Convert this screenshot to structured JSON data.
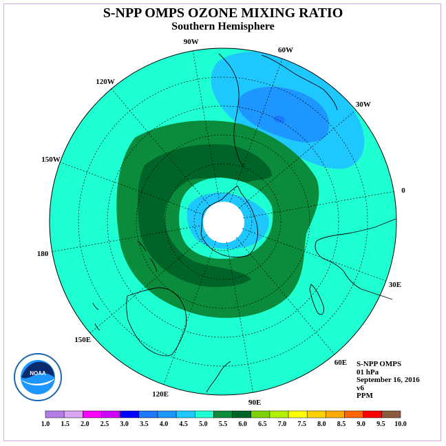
{
  "title": "S-NPP OMPS OZONE MIXING RATIO",
  "subtitle": "Southern Hemisphere",
  "info": {
    "instrument": "S-NPP OMPS",
    "level": "01 hPa",
    "date": "September 16, 2016",
    "version": "v6",
    "units": "PPM"
  },
  "logo_text": "NOAA",
  "longitude_labels": [
    "90W",
    "60W",
    "30W",
    "0",
    "30E",
    "60E",
    "90E",
    "120E",
    "150E",
    "180",
    "150W",
    "120W"
  ],
  "colorbar": {
    "ticks": [
      "1.0",
      "1.5",
      "2.0",
      "2.5",
      "3.0",
      "3.5",
      "4.0",
      "4.5",
      "5.0",
      "5.5",
      "6.0",
      "6.5",
      "7.0",
      "7.5",
      "8.0",
      "8.5",
      "9.0",
      "9.5",
      "10.0"
    ],
    "colors": [
      "#b27de6",
      "#d9a6f2",
      "#ff00ff",
      "#cc00ff",
      "#0000ff",
      "#1e78ff",
      "#1e96ff",
      "#1ec8ff",
      "#1effd2",
      "#0a8c3c",
      "#006428",
      "#7dd200",
      "#b4f000",
      "#ffff00",
      "#ffd200",
      "#ffaa00",
      "#ff6400",
      "#ff0000",
      "#8c5a3c"
    ]
  },
  "colors": {
    "background_level": "#1effd2",
    "ring_outer": "#0a8c3c",
    "ring_inner": "#006428",
    "low_1": "#1ec8ff",
    "low_2": "#1e96ff",
    "low_3": "#1e78ff"
  }
}
